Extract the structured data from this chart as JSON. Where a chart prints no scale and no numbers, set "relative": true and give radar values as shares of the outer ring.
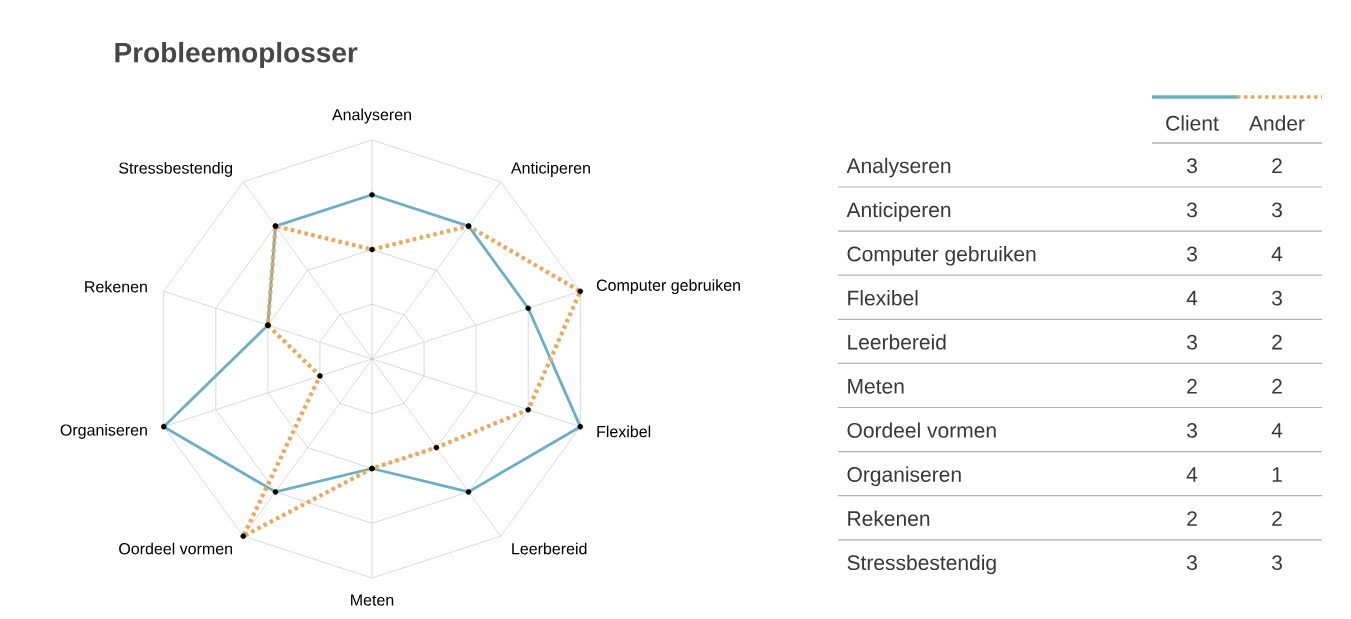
{
  "chart_data": [
    {
      "type": "radar",
      "title": "Probleemoplosser",
      "relative": true,
      "categories": [
        "Analyseren",
        "Anticiperen",
        "Computer gebruiken",
        "Flexibel",
        "Leerbereid",
        "Meten",
        "Oordeel vormen",
        "Organiseren",
        "Rekenen",
        "Stressbestendig"
      ],
      "series": [
        {
          "name": "Client",
          "color": "#6aafc6",
          "line_style": "solid",
          "values": [
            0.75,
            0.75,
            0.75,
            1,
            0.75,
            0.5,
            0.75,
            1,
            0.5,
            0.75
          ]
        },
        {
          "name": "Ander",
          "color": "#f0a65a",
          "line_style": "dotted",
          "values": [
            0.5,
            0.75,
            1,
            0.75,
            0.5,
            0.5,
            1,
            0.25,
            0.5,
            0.75
          ]
        }
      ],
      "grid": true,
      "legend": "top right",
      "marker": "circle"
    },
    {
      "type": "other",
      "categories": [
        "Analyseren",
        "Anticiperen",
        "Computer gebruiken",
        "Flexibel",
        "Leerbereid",
        "Meten",
        "Oordeel vormen",
        "Organiseren",
        "Rekenen",
        "Stressbestendig"
      ],
      "series": [
        {
          "values": [
            3,
            3,
            3,
            4,
            3,
            2,
            3,
            4,
            2,
            3
          ]
        },
        {
          "values": [
            2,
            3,
            4,
            3,
            2,
            2,
            4,
            1,
            2,
            3
          ]
        }
      ],
      "data_labels": true
    }
  ]
}
